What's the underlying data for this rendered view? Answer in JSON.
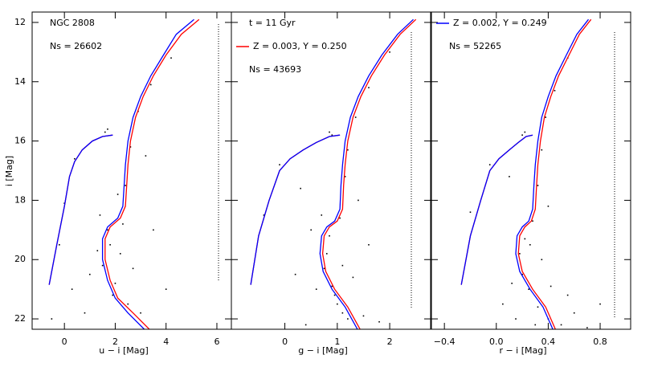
{
  "chart_data": [
    {
      "type": "scatter",
      "xlabel": "u − i [Mag]",
      "ylabel": "i [Mag]",
      "xlim": [
        -1.27,
        6.57
      ],
      "ylim": [
        22.35,
        11.65
      ],
      "xticks": [
        0,
        2,
        4,
        6
      ],
      "yticks": [
        12,
        14,
        16,
        18,
        20,
        22
      ],
      "show_ytick_labels": true,
      "annotations": [
        "NGC 2808",
        "Ns = 26602"
      ],
      "points": {
        "color": "#000000",
        "x": [
          1.8,
          1.5,
          2.0,
          1.7,
          2.2,
          1.3,
          2.4,
          2.6,
          2.9,
          3.4,
          4.2,
          1.6,
          1.7,
          0.4,
          0.0,
          -0.2,
          3.0,
          2.5,
          1.0,
          0.3,
          -0.5,
          4.0,
          3.5,
          2.3,
          1.4,
          0.8,
          2.7,
          1.9,
          3.2,
          2.1
        ],
        "y": [
          19.5,
          20.2,
          20.8,
          19.0,
          19.8,
          19.7,
          17.5,
          16.2,
          15.0,
          14.1,
          13.2,
          15.7,
          15.6,
          16.6,
          18.1,
          19.5,
          21.8,
          21.5,
          20.5,
          21.0,
          22.0,
          21.0,
          19.0,
          18.8,
          18.5,
          21.8,
          20.3,
          21.2,
          16.5,
          17.8
        ]
      },
      "series": [
        {
          "color": "#ff0000",
          "x": [
            3.4,
            2.7,
            2.1,
            1.8,
            1.6,
            1.6,
            1.8,
            2.2,
            2.4,
            2.45,
            2.5,
            2.6,
            2.8,
            3.1,
            3.5,
            4.0,
            4.6,
            5.3,
            null,
            -0.6,
            -0.3,
            0.0,
            0.2,
            0.4,
            0.7,
            1.1,
            1.5,
            1.9
          ],
          "y": [
            22.4,
            21.8,
            21.3,
            20.7,
            20.0,
            19.3,
            18.9,
            18.6,
            18.2,
            17.5,
            16.8,
            16.0,
            15.2,
            14.5,
            13.8,
            13.1,
            12.4,
            11.9,
            null,
            20.85,
            19.5,
            18.2,
            17.2,
            16.7,
            16.3,
            16.0,
            15.85,
            15.8
          ]
        },
        {
          "color": "#0000ff",
          "x": [
            3.2,
            2.5,
            2.0,
            1.7,
            1.5,
            1.5,
            1.7,
            2.1,
            2.3,
            2.35,
            2.4,
            2.5,
            2.7,
            3.0,
            3.4,
            3.9,
            4.4,
            5.1,
            null,
            -0.6,
            -0.3,
            0.0,
            0.2,
            0.4,
            0.7,
            1.1,
            1.5,
            1.9
          ],
          "y": [
            22.4,
            21.8,
            21.3,
            20.7,
            20.0,
            19.3,
            18.9,
            18.6,
            18.2,
            17.5,
            16.8,
            16.0,
            15.2,
            14.5,
            13.8,
            13.1,
            12.4,
            11.9,
            null,
            20.85,
            19.5,
            18.2,
            17.2,
            16.7,
            16.3,
            16.0,
            15.85,
            15.8
          ]
        }
      ]
    },
    {
      "type": "scatter",
      "xlabel": "g − i [Mag]",
      "xlim": [
        -1.02,
        2.78
      ],
      "ylim": [
        22.35,
        11.65
      ],
      "xticks": [
        0,
        1,
        2
      ],
      "yticks": [
        12,
        14,
        16,
        18,
        20,
        22
      ],
      "show_ytick_labels": false,
      "annotations": [
        "t = 11 Gyr",
        "Ns = 43693"
      ],
      "points": {
        "color": "#000000",
        "x": [
          0.8,
          0.75,
          0.9,
          1.0,
          1.2,
          0.6,
          1.1,
          0.85,
          1.05,
          1.15,
          1.2,
          1.35,
          1.6,
          2.0,
          0.85,
          0.9,
          -0.1,
          -0.4,
          0.3,
          1.5,
          0.4,
          1.6,
          0.5,
          1.3,
          0.95,
          1.4,
          0.2,
          1.8,
          0.7,
          1.1
        ],
        "y": [
          19.8,
          20.3,
          20.9,
          21.5,
          22.0,
          21.0,
          20.2,
          19.2,
          18.6,
          17.2,
          16.3,
          15.2,
          14.2,
          13.0,
          15.7,
          15.8,
          16.8,
          18.5,
          17.6,
          21.9,
          22.2,
          19.5,
          19.0,
          20.6,
          21.2,
          18.0,
          20.5,
          22.1,
          18.5,
          21.8
        ]
      },
      "series": [
        {
          "name": "Z = 0.003, Y = 0.250",
          "color": "#ff0000",
          "x": [
            1.45,
            1.2,
            0.95,
            0.78,
            0.72,
            0.75,
            0.85,
            1.0,
            1.1,
            1.12,
            1.15,
            1.2,
            1.3,
            1.45,
            1.65,
            1.9,
            2.2,
            2.5,
            null,
            -0.65,
            -0.5,
            -0.3,
            -0.1,
            0.1,
            0.35,
            0.6,
            0.85,
            1.05
          ],
          "y": [
            22.4,
            21.6,
            21.0,
            20.4,
            19.8,
            19.2,
            18.9,
            18.7,
            18.3,
            17.5,
            16.8,
            16.0,
            15.2,
            14.5,
            13.8,
            13.1,
            12.4,
            11.9,
            null,
            20.85,
            19.2,
            18.0,
            17.0,
            16.6,
            16.3,
            16.05,
            15.85,
            15.8
          ]
        },
        {
          "color": "#0000ff",
          "x": [
            1.4,
            1.15,
            0.9,
            0.73,
            0.67,
            0.7,
            0.8,
            0.95,
            1.05,
            1.07,
            1.1,
            1.15,
            1.25,
            1.4,
            1.6,
            1.85,
            2.15,
            2.45,
            null,
            -0.65,
            -0.5,
            -0.3,
            -0.1,
            0.1,
            0.35,
            0.6,
            0.85,
            1.05
          ],
          "y": [
            22.4,
            21.6,
            21.0,
            20.4,
            19.8,
            19.2,
            18.9,
            18.7,
            18.3,
            17.5,
            16.8,
            16.0,
            15.2,
            14.5,
            13.8,
            13.1,
            12.4,
            11.9,
            null,
            20.85,
            19.2,
            18.0,
            17.0,
            16.6,
            16.3,
            16.05,
            15.85,
            15.8
          ]
        }
      ]
    },
    {
      "type": "scatter",
      "xlabel": "r − i [Mag]",
      "xlim": [
        -0.5,
        1.035
      ],
      "ylim": [
        22.35,
        11.65
      ],
      "xticks": [
        {
          "value": -0.4,
          "label": "−0.4"
        },
        {
          "value": 0,
          "label": "0.0"
        },
        0.4,
        0.8
      ],
      "yticks": [
        12,
        14,
        16,
        18,
        20,
        22
      ],
      "show_ytick_labels": false,
      "annotations": [
        "Ns = 52265"
      ],
      "points": {
        "color": "#000000",
        "x": [
          0.18,
          0.2,
          0.25,
          0.32,
          0.4,
          0.5,
          0.6,
          0.12,
          0.22,
          0.28,
          0.32,
          0.35,
          0.38,
          0.45,
          0.55,
          0.22,
          0.2,
          -0.05,
          -0.2,
          0.1,
          0.7,
          0.05,
          0.35,
          0.3,
          0.42,
          0.15,
          0.8,
          0.26,
          0.4,
          0.55
        ],
        "y": [
          19.8,
          20.5,
          21.0,
          21.6,
          22.0,
          22.2,
          21.8,
          20.8,
          19.3,
          18.7,
          17.5,
          16.3,
          15.2,
          14.3,
          13.2,
          15.7,
          15.8,
          16.8,
          18.4,
          17.2,
          22.3,
          21.5,
          20.0,
          22.2,
          20.9,
          22.0,
          21.5,
          19.5,
          18.2,
          21.2
        ]
      },
      "series": [
        {
          "color": "#ff0000",
          "x": [
            0.46,
            0.38,
            0.28,
            0.2,
            0.17,
            0.18,
            0.22,
            0.27,
            0.3,
            0.31,
            0.32,
            0.34,
            0.37,
            0.42,
            0.48,
            0.56,
            0.64,
            0.73,
            null,
            -0.27,
            -0.2,
            -0.12,
            -0.05,
            0.02,
            0.1,
            0.17,
            0.23,
            0.28
          ],
          "y": [
            22.4,
            21.6,
            21.0,
            20.4,
            19.8,
            19.2,
            18.9,
            18.7,
            18.3,
            17.5,
            16.8,
            16.0,
            15.2,
            14.5,
            13.8,
            13.1,
            12.4,
            11.9,
            null,
            20.85,
            19.2,
            18.0,
            17.0,
            16.6,
            16.3,
            16.05,
            15.85,
            15.8
          ]
        },
        {
          "name": "Z = 0.002, Y = 0.249",
          "color": "#0000ff",
          "x": [
            0.44,
            0.36,
            0.26,
            0.18,
            0.15,
            0.16,
            0.2,
            0.25,
            0.28,
            0.29,
            0.3,
            0.32,
            0.35,
            0.4,
            0.46,
            0.54,
            0.62,
            0.71,
            null,
            -0.27,
            -0.2,
            -0.12,
            -0.05,
            0.02,
            0.1,
            0.17,
            0.23,
            0.28
          ],
          "y": [
            22.4,
            21.6,
            21.0,
            20.4,
            19.8,
            19.2,
            18.9,
            18.7,
            18.3,
            17.5,
            16.8,
            16.0,
            15.2,
            14.5,
            13.8,
            13.1,
            12.4,
            11.9,
            null,
            20.85,
            19.2,
            18.0,
            17.0,
            16.6,
            16.3,
            16.05,
            15.85,
            15.8
          ]
        }
      ]
    }
  ]
}
